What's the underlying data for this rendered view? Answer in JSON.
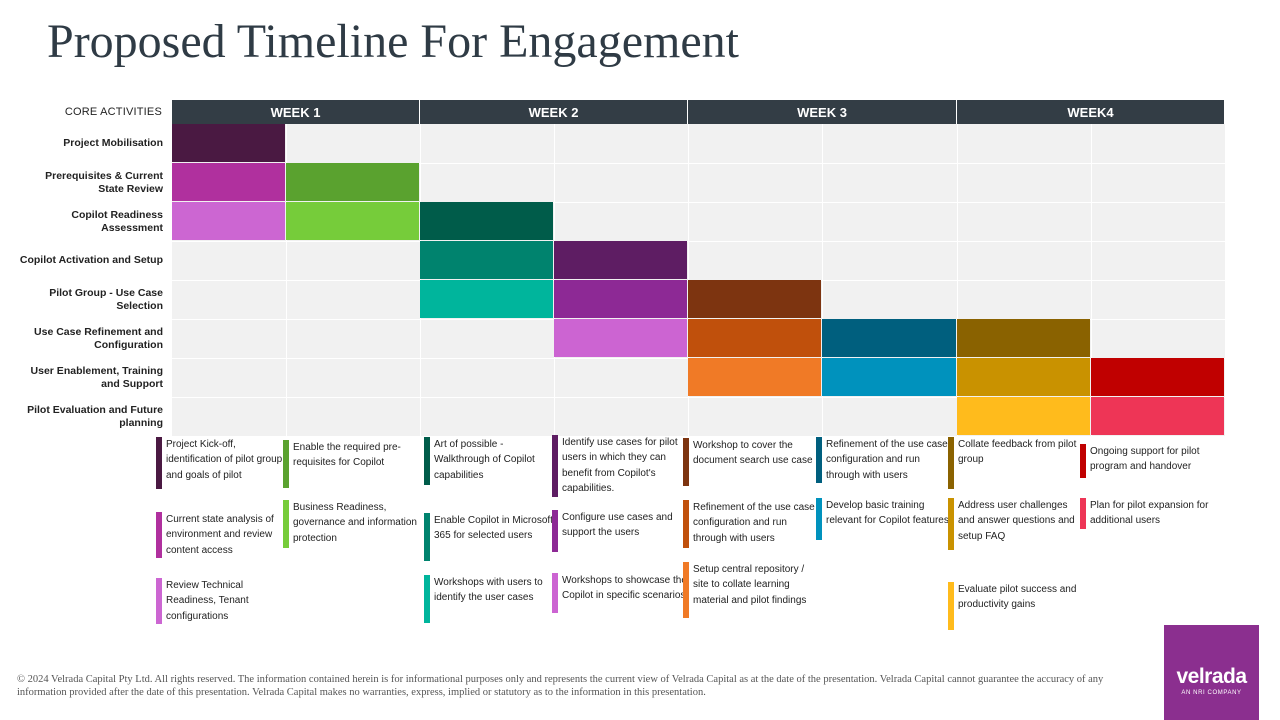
{
  "title": "Proposed Timeline For Engagement",
  "chart_data": {
    "type": "gantt",
    "header": "CORE ACTIVITIES",
    "weeks": [
      "WEEK 1",
      "WEEK 2",
      "WEEK 3",
      "WEEK4"
    ],
    "periods_per_week": 2,
    "rows": [
      {
        "label": "Project Mobilisation",
        "bars": [
          {
            "start": 0,
            "end": 1,
            "color": "#4a1942"
          }
        ]
      },
      {
        "label": "Prerequisites & Current State Review",
        "bars": [
          {
            "start": 0,
            "end": 1,
            "color": "#b0309e"
          },
          {
            "start": 1,
            "end": 2,
            "color": "#5aa22f"
          }
        ]
      },
      {
        "label": "Copilot Readiness Assessment",
        "bars": [
          {
            "start": 0,
            "end": 1,
            "color": "#cc66d2"
          },
          {
            "start": 1,
            "end": 2,
            "color": "#76cc3a"
          },
          {
            "start": 2,
            "end": 3,
            "color": "#005c4a"
          }
        ]
      },
      {
        "label": "Copilot Activation and Setup",
        "bars": [
          {
            "start": 2,
            "end": 3,
            "color": "#00836e"
          },
          {
            "start": 3,
            "end": 4,
            "color": "#5e1d63"
          }
        ]
      },
      {
        "label": "Pilot Group - Use Case Selection",
        "bars": [
          {
            "start": 2,
            "end": 3,
            "color": "#00b59c"
          },
          {
            "start": 3,
            "end": 4,
            "color": "#8d2995"
          },
          {
            "start": 4,
            "end": 5,
            "color": "#7d3410"
          }
        ]
      },
      {
        "label": "Use Case Refinement and Configuration",
        "bars": [
          {
            "start": 3,
            "end": 4,
            "color": "#cc64d2"
          },
          {
            "start": 4,
            "end": 5,
            "color": "#c0500c"
          },
          {
            "start": 5,
            "end": 6,
            "color": "#005f7e"
          },
          {
            "start": 6,
            "end": 7,
            "color": "#8a6200"
          }
        ]
      },
      {
        "label": "User Enablement, Training and Support",
        "bars": [
          {
            "start": 4,
            "end": 5,
            "color": "#f07a26"
          },
          {
            "start": 5,
            "end": 6,
            "color": "#0092bd"
          },
          {
            "start": 6,
            "end": 7,
            "color": "#c99200"
          },
          {
            "start": 7,
            "end": 8,
            "color": "#c00000"
          }
        ]
      },
      {
        "label": "Pilot Evaluation and Future planning",
        "bars": [
          {
            "start": 6,
            "end": 7,
            "color": "#ffbb1c"
          },
          {
            "start": 7,
            "end": 8,
            "color": "#ee3556"
          }
        ]
      }
    ],
    "tasks": [
      [
        {
          "text": "Project Kick-off, identification of pilot group and goals of pilot",
          "color": "#4a1942"
        },
        {
          "text": "Current state analysis of environment and review content access",
          "color": "#b0309e"
        },
        {
          "text": "Review Technical Readiness, Tenant configurations",
          "color": "#cc66d2"
        }
      ],
      [
        {
          "text": "Enable the required pre-requisites for Copilot",
          "color": "#5aa22f"
        },
        {
          "text": "Business Readiness, governance and information protection",
          "color": "#76cc3a"
        }
      ],
      [
        {
          "text": "Art of possible - Walkthrough of Copilot capabilities",
          "color": "#005c4a"
        },
        {
          "text": "Enable Copilot in Microsoft 365 for selected users",
          "color": "#00836e"
        },
        {
          "text": "Workshops with users to identify the user cases",
          "color": "#00b59c"
        }
      ],
      [
        {
          "text": "Identify use cases for pilot users in which they can benefit from Copilot's capabilities.",
          "color": "#5e1d63"
        },
        {
          "text": "Configure use cases and support the users",
          "color": "#8d2995"
        },
        {
          "text": "Workshops to showcase the Copilot in specific scenarios",
          "color": "#cc64d2"
        }
      ],
      [
        {
          "text": "Workshop to cover the document search use case",
          "color": "#7d3410"
        },
        {
          "text": "Refinement of the use case configuration and run through with users",
          "color": "#c0500c"
        },
        {
          "text": "Setup central repository / site to collate learning material and pilot findings",
          "color": "#f07a26"
        }
      ],
      [
        {
          "text": "Refinement of the use case configuration and run through with users",
          "color": "#005f7e"
        },
        {
          "text": "Develop basic training relevant for Copilot features",
          "color": "#0092bd"
        }
      ],
      [
        {
          "text": "Collate feedback from pilot group",
          "color": "#8a6200"
        },
        {
          "text": "Address user challenges and answer questions and setup FAQ",
          "color": "#c99200"
        },
        {
          "text": "Evaluate pilot success and productivity gains",
          "color": "#ffbb1c"
        }
      ],
      [
        {
          "text": "Ongoing support for pilot program and handover",
          "color": "#c00000"
        },
        {
          "text": "Plan for pilot expansion for additional users",
          "color": "#ee3556"
        }
      ]
    ]
  },
  "footer": "© 2024 Velrada Capital Pty Ltd. All rights reserved. The information contained herein is for informational purposes only and represents the current view of Velrada Capital as at the date of the presentation.  Velrada Capital cannot guarantee the accuracy of any information provided after the date of this presentation. Velrada Capital makes no warranties, express, implied or statutory as to the information in this presentation.",
  "logo": {
    "word": "velrada",
    "tagline": "AN NRI COMPANY"
  }
}
